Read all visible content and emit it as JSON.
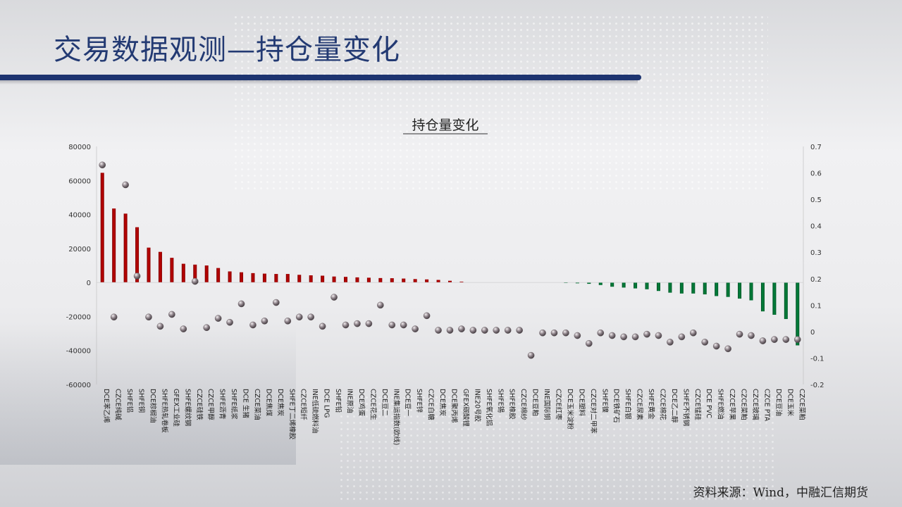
{
  "slide": {
    "title": "交易数据观测—持仓量变化",
    "source": "资料来源：Wind，中融汇信期货"
  },
  "colors": {
    "title": "#233a73",
    "bar_positive": "#c00000",
    "bar_negative": "#00843d",
    "marker": "#8a7f86"
  },
  "chart_data": {
    "type": "bar",
    "title": "持仓量变化",
    "xlabel": "",
    "ylabel": "",
    "ylim": [
      -60000,
      80000
    ],
    "y_ticks": [
      "80000",
      "60000",
      "40000",
      "20000",
      "0",
      "-20000",
      "-40000",
      "-60000"
    ],
    "y2lim": [
      -0.2,
      0.7
    ],
    "y2_ticks": [
      "0.7",
      "0.6",
      "0.5",
      "0.4",
      "0.3",
      "0.2",
      "0.1",
      "0",
      "-0.1",
      "-0.2"
    ],
    "grid": false,
    "legend": "none",
    "categories": [
      "DCE苯乙烯",
      "CZCE纯碱",
      "SHFE铝",
      "SHFE铜",
      "DCE棕榈油",
      "SHFE热轧卷板",
      "GFEX工业硅",
      "SHFE螺纹钢",
      "CZCE硅铁",
      "CZCE甲醇",
      "SHFE沥青",
      "SHFE纸浆",
      "DCE 生猪",
      "CZCE菜油",
      "DCE焦煤",
      "DCE焦炭",
      "SHFE丁二烯橡胶",
      "CZCE短纤",
      "INE低硫燃料油",
      "DCE LPG",
      "SHFE铅",
      "INE原油",
      "DCE鸡蛋",
      "CZCE花生",
      "DCE豆二",
      "INE集运指数(欧线)",
      "DCE豆一",
      "SHFE锌",
      "CZCE白糖",
      "DCE焦炭",
      "DCE聚丙烯",
      "GFEX碳酸锂",
      "INE20号胶",
      "SHFE氧化铝",
      "SHFE锡",
      "SHFE橡胶",
      "CZCE棉纱",
      "DCE豆粕",
      "INE国际铜",
      "CZCE红枣",
      "DCE玉米淀粉",
      "DCE塑料",
      "CZCE对二甲苯",
      "SHFE镍",
      "DCE铁矿石",
      "SHFE白银",
      "CZCE尿素",
      "SHFE黄金",
      "CZCE棉花",
      "DCE乙二醇",
      "SHFE不锈钢",
      "CZCE锰硅",
      "DCE PVC",
      "SHFE燃油",
      "CZCE苹果",
      "CZCE菜粕",
      "CZCE玻璃",
      "CZCE PTA",
      "DCE豆油",
      "DCE玉米",
      "CZCE菜粕"
    ],
    "series": [
      {
        "axis": "left",
        "kind": "bar",
        "values": [
          64500,
          43500,
          40500,
          32500,
          20500,
          18000,
          14500,
          11000,
          10500,
          10000,
          8500,
          6500,
          6000,
          5500,
          5200,
          5000,
          5000,
          4500,
          4200,
          4000,
          3500,
          3300,
          3000,
          2800,
          2600,
          2500,
          2300,
          2000,
          1800,
          1500,
          1000,
          500,
          0,
          0,
          0,
          0,
          0,
          0,
          0,
          0,
          -200,
          -500,
          -800,
          -1500,
          -2500,
          -3000,
          -3500,
          -4000,
          -5000,
          -6000,
          -6500,
          -6500,
          -7000,
          -8000,
          -8500,
          -9500,
          -10500,
          -17000,
          -19000,
          -21500,
          -37000
        ]
      },
      {
        "axis": "right",
        "kind": "marker",
        "values": [
          0.63,
          0.055,
          0.555,
          0.21,
          0.055,
          0.02,
          0.065,
          0.01,
          0.19,
          0.015,
          0.05,
          0.035,
          0.105,
          0.025,
          0.04,
          0.11,
          0.04,
          0.055,
          0.055,
          0.02,
          0.13,
          0.025,
          0.03,
          0.03,
          0.1,
          0.025,
          0.025,
          0.01,
          0.06,
          0.005,
          0.005,
          0.01,
          0.005,
          0.005,
          0.005,
          0.005,
          0.005,
          -0.09,
          -0.005,
          -0.005,
          -0.005,
          -0.015,
          -0.045,
          -0.005,
          -0.015,
          -0.02,
          -0.02,
          -0.01,
          -0.015,
          -0.04,
          -0.02,
          -0.005,
          -0.04,
          -0.055,
          -0.065,
          -0.01,
          -0.015,
          -0.035,
          -0.03,
          -0.03,
          -0.03
        ]
      }
    ]
  }
}
